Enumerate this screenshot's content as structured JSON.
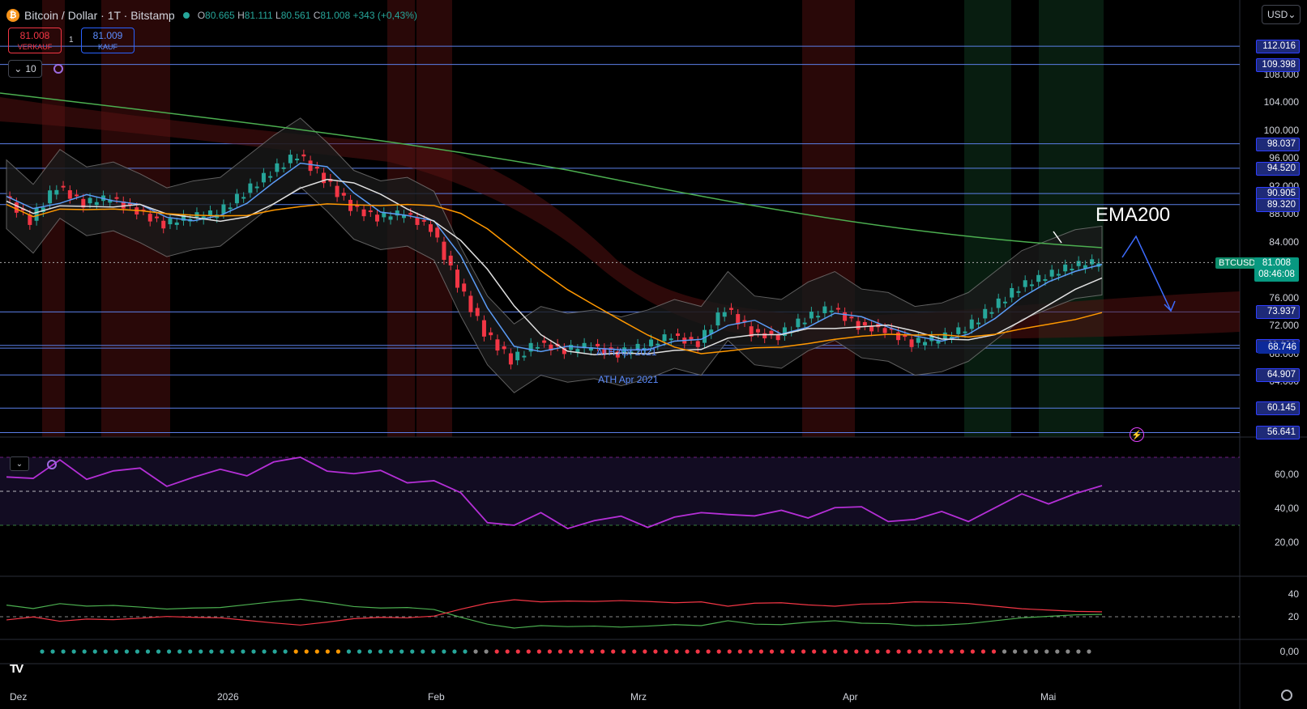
{
  "header": {
    "symbol_title": "Bitcoin / Dollar · 1T · Bitstamp",
    "coin_icon": "bitcoin-icon",
    "ohlc": {
      "o_label": "O",
      "o": "80.665",
      "h_label": "H",
      "h": "81.111",
      "l_label": "L",
      "l": "80.561",
      "c_label": "C",
      "c": "81.008",
      "change": "+343 (+0,43%)"
    }
  },
  "trade": {
    "sell_price": "81.008",
    "sell_label": "VERKAUF",
    "quantity": "1",
    "buy_price": "81.009",
    "buy_label": "KAUF"
  },
  "indicator_ctrl": {
    "value": "10"
  },
  "currency_select": {
    "value": "USD"
  },
  "annotation": {
    "ema_label": "EMA200",
    "ath_label_a": "ATH Apr 2021",
    "ath_label_b": "ATH Apr 2021"
  },
  "symbol_tag": "BTCUSD",
  "last_price": {
    "value": "81.008",
    "countdown": "08:46:08"
  },
  "price_axis": [
    "108.000",
    "104.000",
    "100.000",
    "96.000",
    "92.000",
    "88.000",
    "84.000",
    "76.000",
    "72.000",
    "68.000",
    "64.000"
  ],
  "level_labels": [
    {
      "value": "112.016",
      "dark": false
    },
    {
      "value": "109.398",
      "dark": false
    },
    {
      "value": "98.037",
      "dark": false
    },
    {
      "value": "94.520",
      "dark": false
    },
    {
      "value": "90.905",
      "dark": false
    },
    {
      "value": "89.320",
      "dark": false
    },
    {
      "value": "73.937",
      "dark": false
    },
    {
      "value": "69.130",
      "dark": false
    },
    {
      "value": "68.746",
      "dark": true
    },
    {
      "value": "64.907",
      "dark": false
    },
    {
      "value": "60.145",
      "dark": false
    },
    {
      "value": "56.641",
      "dark": false
    }
  ],
  "rsi_axis": [
    "60,00",
    "40,00",
    "20,00"
  ],
  "dmi_axis": [
    "40",
    "20",
    "0,00"
  ],
  "time_axis": [
    "Dez",
    "2026",
    "Feb",
    "Mrz",
    "Apr",
    "Mai"
  ],
  "colors": {
    "bull": "#26a69a",
    "bear": "#f23645",
    "level": "#5b7fe8",
    "ema200": "#4caf50",
    "ema_orange": "#ff9800",
    "ema_blue": "#5b9cf6",
    "rsi": "#b42fd6"
  },
  "chart_data": {
    "type": "candlestick",
    "symbol": "BTCUSD",
    "ylim": [
      56000,
      114000
    ],
    "x": [
      "Dez",
      "2026",
      "Feb",
      "Mrz",
      "Apr",
      "Mai"
    ],
    "close_path": [
      90500,
      87000,
      92000,
      89500,
      90200,
      88500,
      86500,
      87500,
      88000,
      91000,
      94000,
      96500,
      93000,
      89000,
      87500,
      88000,
      86000,
      78000,
      71000,
      67000,
      69500,
      68500,
      69000,
      68000,
      69000,
      70500,
      69500,
      74500,
      71000,
      70500,
      73000,
      74500,
      72000,
      71500,
      69500,
      70000,
      71500,
      74500,
      77500,
      79000,
      80500,
      81008
    ],
    "horizontal_levels": [
      112016,
      109398,
      98037,
      94520,
      90905,
      89320,
      73937,
      69130,
      68746,
      64907,
      60145,
      56641
    ],
    "rsi": {
      "ylim": [
        0,
        80
      ],
      "upper": 70,
      "mid": 50,
      "lower": 30,
      "last": 64
    },
    "dmi": {
      "ylim": [
        0,
        50
      ],
      "level": 20
    }
  }
}
